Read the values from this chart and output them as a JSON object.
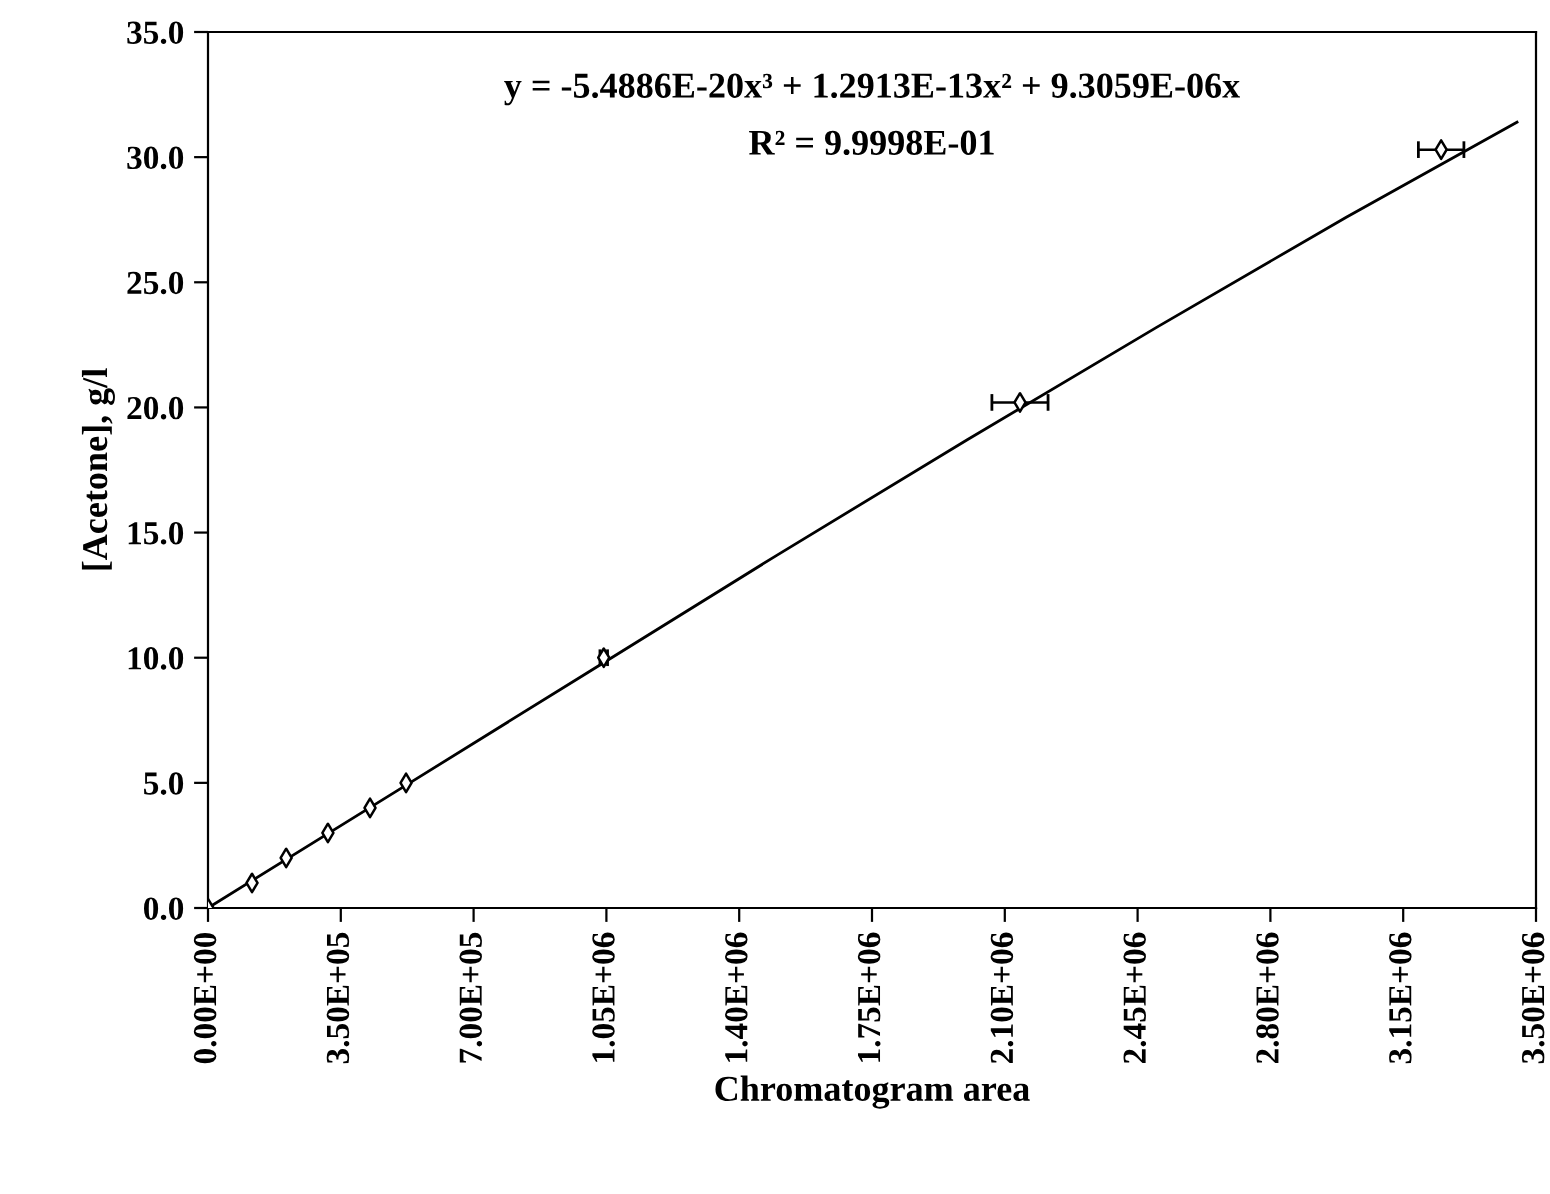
{
  "chart_data": {
    "type": "scatter",
    "xlabel": "Chromatogram area",
    "ylabel": "[Acetone], g/l",
    "annotations": [
      "y = -5.4886E-20x³ + 1.2913E-13x² + 9.3059E-06x",
      "R² = 9.9998E-01"
    ],
    "series": [
      {
        "color": "#000000",
        "marker": "diamond",
        "x": [
          0,
          116000,
          206000,
          316000,
          427000,
          522000,
          1043000,
          2140000,
          3250000
        ],
        "values": [
          0,
          1,
          2,
          3,
          4,
          5,
          10,
          20.2,
          30.3
        ],
        "xerrors": [
          null,
          null,
          null,
          null,
          null,
          null,
          10000,
          74000,
          60000
        ]
      },
      {
        "type": "line",
        "color": "#000000",
        "marker": "none",
        "line_style": "solid",
        "x": [
          0,
          500000,
          1000000,
          1500000,
          2000000,
          2500000,
          3000000,
          3450000
        ],
        "values": [
          0,
          4.7,
          9.4,
          14.1,
          18.7,
          23.2,
          27.6,
          31.4
        ]
      }
    ],
    "xlim": [
      0,
      3500000
    ],
    "ylim": [
      0,
      35
    ],
    "xticks": [
      {
        "value": 0,
        "label": "0.00E+00"
      },
      {
        "value": 350000,
        "label": "3.50E+05"
      },
      {
        "value": 700000,
        "label": "7.00E+05"
      },
      {
        "value": 1050000,
        "label": "1.05E+06"
      },
      {
        "value": 1400000,
        "label": "1.40E+06"
      },
      {
        "value": 1750000,
        "label": "1.75E+06"
      },
      {
        "value": 2100000,
        "label": "2.10E+06"
      },
      {
        "value": 2450000,
        "label": "2.45E+06"
      },
      {
        "value": 2800000,
        "label": "2.80E+06"
      },
      {
        "value": 3150000,
        "label": "3.15E+06"
      },
      {
        "value": 3500000,
        "label": "3.50E+06"
      }
    ],
    "yticks": [
      {
        "value": 0,
        "label": "0.0"
      },
      {
        "value": 5,
        "label": "5.0"
      },
      {
        "value": 10,
        "label": "10.0"
      },
      {
        "value": 15,
        "label": "15.0"
      },
      {
        "value": 20,
        "label": "20.0"
      },
      {
        "value": 25,
        "label": "25.0"
      },
      {
        "value": 30,
        "label": "30.0"
      },
      {
        "value": 35,
        "label": "35.0"
      }
    ],
    "grid": false,
    "legend": false
  }
}
